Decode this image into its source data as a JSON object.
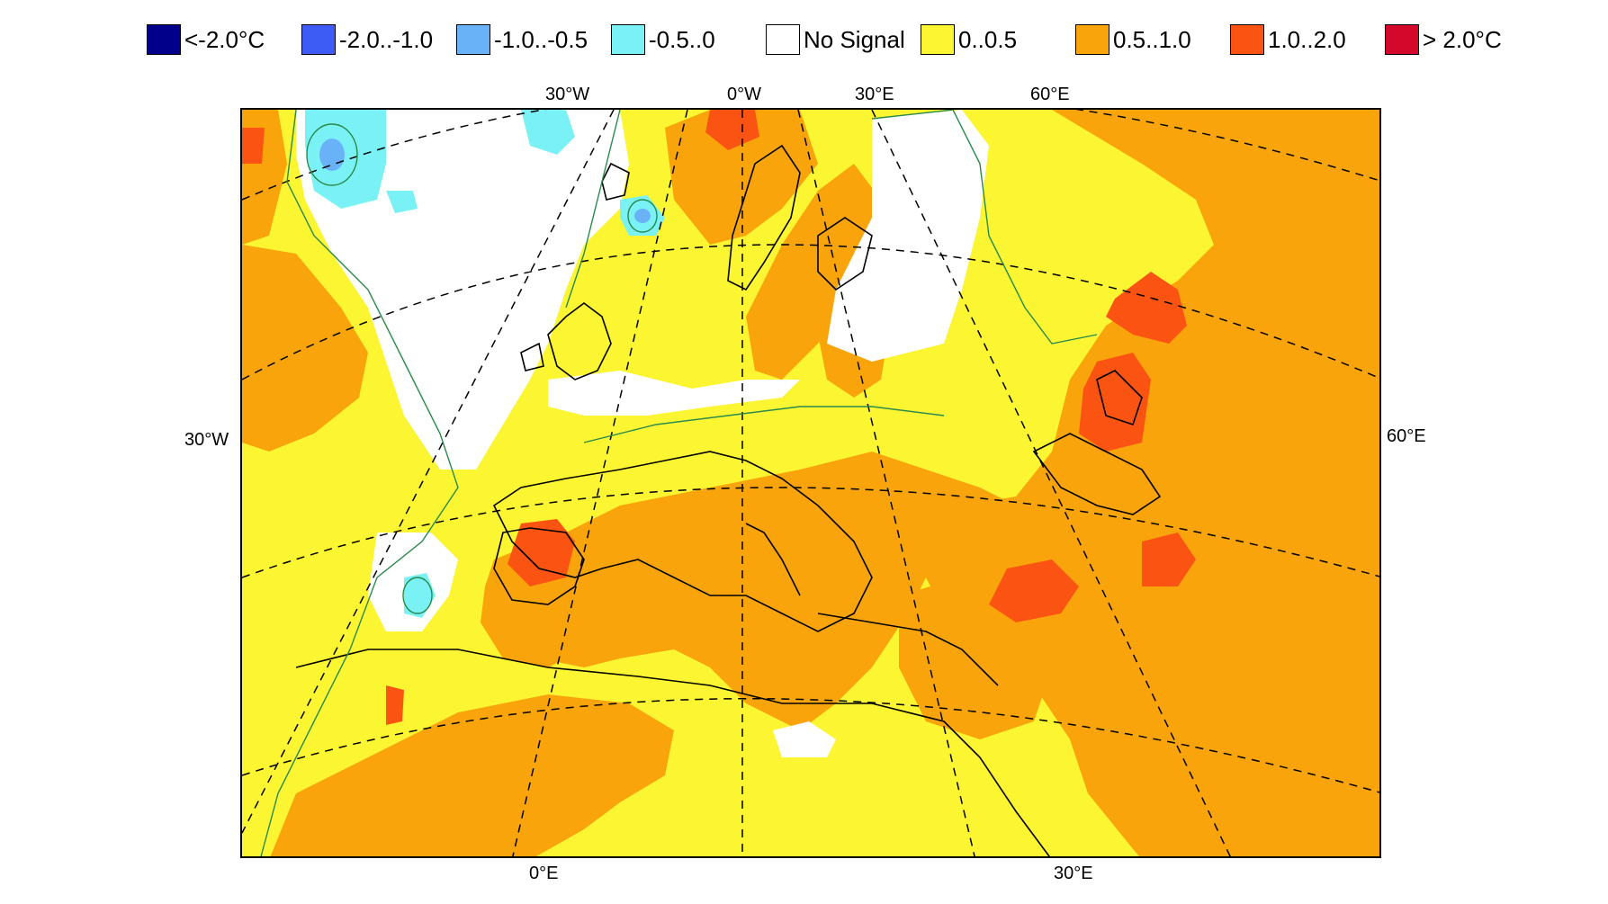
{
  "legend": [
    {
      "label": "<-2.0°C",
      "color": "#00008b"
    },
    {
      "label": "-2.0..-1.0",
      "color": "#3d5cf5"
    },
    {
      "label": "-1.0..-0.5",
      "color": "#6ab2f8"
    },
    {
      "label": "-0.5..0",
      "color": "#7af2f5"
    },
    {
      "label": "No Signal",
      "color": "#ffffff"
    },
    {
      "label": "0..0.5",
      "color": "#fcf532"
    },
    {
      "label": "0.5..1.0",
      "color": "#f9a40b"
    },
    {
      "label": "1.0..2.0",
      "color": "#fb5412"
    },
    {
      "label": "> 2.0°C",
      "color": "#d4082a"
    }
  ],
  "map": {
    "top_labels": [
      "30°W",
      "0°W",
      "30°E",
      "60°E"
    ],
    "bottom_labels": [
      "0°E",
      "30°E"
    ],
    "left_label": "30°W",
    "right_label": "60°E"
  }
}
